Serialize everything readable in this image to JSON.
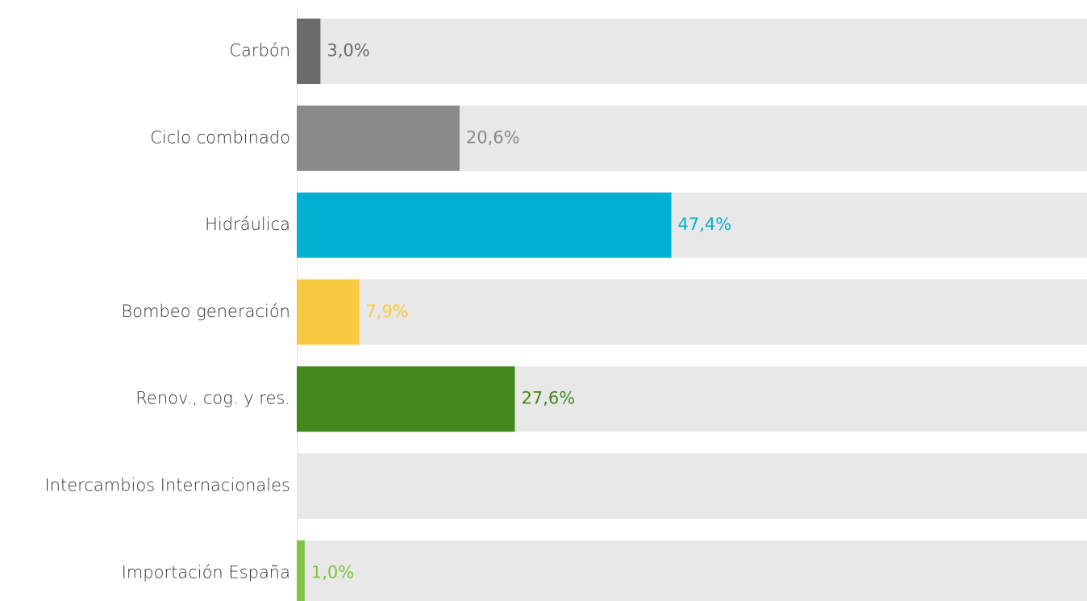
{
  "chart_data": {
    "type": "bar",
    "orientation": "horizontal",
    "categories": [
      "Carbón",
      "Ciclo combinado",
      "Hidráulica",
      "Bombeo generación",
      "Renov., cog. y res.",
      "Intercambios Internacionales",
      "Importación España"
    ],
    "values": [
      3.0,
      20.6,
      47.4,
      7.9,
      27.6,
      null,
      1.0
    ],
    "value_labels": [
      "3,0%",
      "20,6%",
      "47,4%",
      "7,9%",
      "27,6%",
      "",
      "1,0%"
    ],
    "colors": [
      "#6b6b6b",
      "#8a8a8a",
      "#00b0d0",
      "#f9c940",
      "#44891e",
      "#cccccc",
      "#82c341"
    ],
    "xlim": [
      0,
      100
    ],
    "track_color": "#e8e8e8",
    "title": "",
    "xlabel": "",
    "ylabel": "",
    "legend": "none",
    "grid": false
  }
}
